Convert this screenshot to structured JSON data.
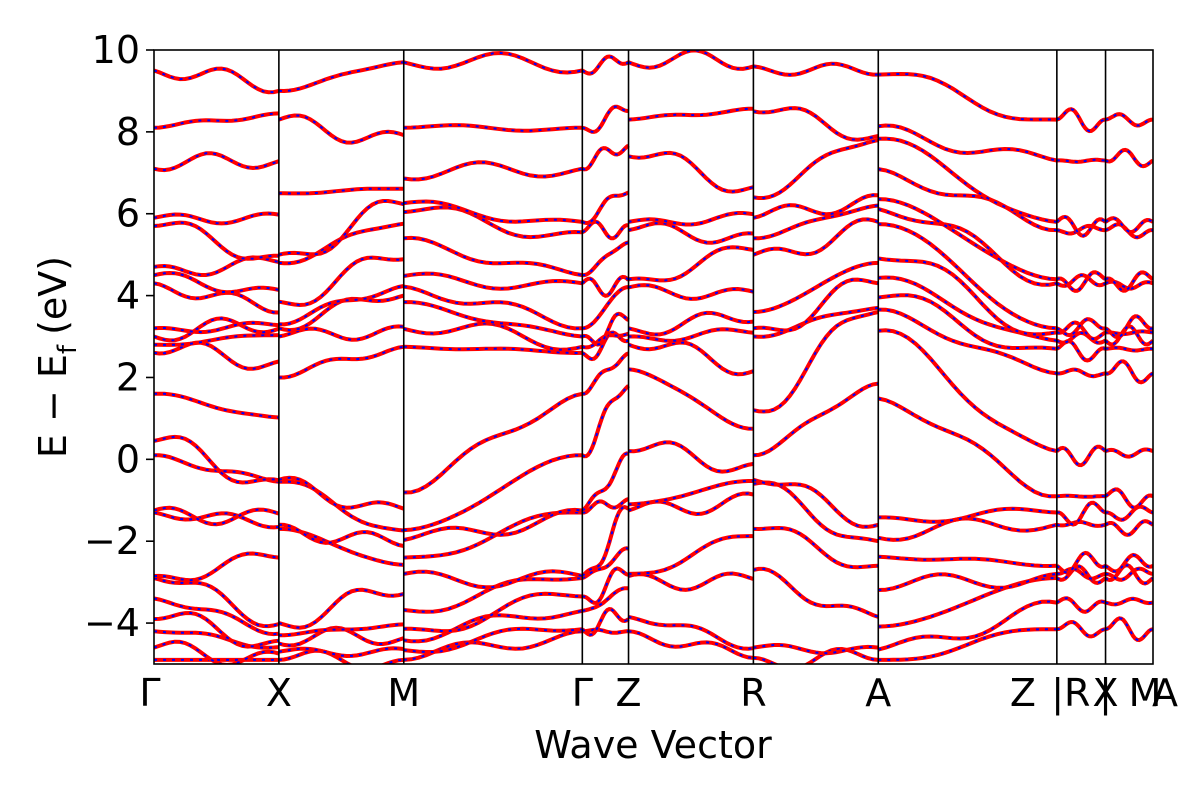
{
  "chart_data": {
    "type": "line",
    "title": "",
    "xlabel": "Wave Vector",
    "ylabel": "E − E_f (eV)",
    "ylabel_main": "E − E",
    "ylabel_sub": "f",
    "ylabel_unit": "(eV)",
    "ylim": [
      -5,
      10
    ],
    "yticks": [
      -4,
      -2,
      0,
      2,
      4,
      6,
      8,
      10
    ],
    "ytick_labels": [
      "−4",
      "−2",
      "0",
      "2",
      "4",
      "6",
      "8",
      "10"
    ],
    "xlim": [
      0,
      8.0
    ],
    "kpoints": [
      {
        "x": 0.0,
        "label": "Γ"
      },
      {
        "x": 1.0,
        "label": "X"
      },
      {
        "x": 2.0,
        "label": "M"
      },
      {
        "x": 3.43,
        "label": "Γ"
      },
      {
        "x": 3.8,
        "label": "Z"
      },
      {
        "x": 4.8,
        "label": "R"
      },
      {
        "x": 5.8,
        "label": "A"
      },
      {
        "x": 7.23,
        "label": "Z"
      },
      {
        "x": 7.23,
        "label": "|R"
      },
      {
        "x": 7.62,
        "label": "X"
      },
      {
        "x": 7.62,
        "label": "|"
      },
      {
        "x": 8.0,
        "label": "M"
      },
      {
        "x": 8.0,
        "label": "A"
      }
    ],
    "vlines": [
      1.0,
      2.0,
      3.43,
      3.8,
      4.8,
      5.8,
      7.23,
      7.62
    ],
    "band_energies_at_kpoints": {
      "Gamma": [
        -4.9,
        -4.6,
        -4.2,
        -3.9,
        -3.4,
        -2.9,
        -2.85,
        -1.3,
        -1.25,
        0.1,
        0.45,
        1.6,
        2.6,
        2.8,
        3.0,
        3.2,
        4.3,
        4.5,
        4.7,
        5.7,
        5.9,
        7.1,
        8.1,
        9.5
      ],
      "X": [
        -4.9,
        -4.7,
        -4.5,
        -4.3,
        -4.0,
        -1.7,
        -1.6,
        -0.55,
        -0.5,
        2.0,
        3.0,
        3.2,
        3.3,
        3.85,
        4.8,
        5.0,
        6.5,
        8.3,
        9.0
      ],
      "M": [
        -4.9,
        -4.6,
        -4.3,
        -3.9,
        -2.8,
        -2.3,
        -1.75,
        -1.7,
        2.75,
        3.3,
        4.2,
        4.25,
        5.4,
        6.2,
        6.3,
        7.7,
        9.7
      ],
      "Gamma2": [
        -4.2,
        -4.15,
        -3.7,
        -3.35,
        -2.9,
        -2.85,
        -1.3,
        -1.25,
        0.1,
        1.6,
        2.6,
        2.75,
        3.0,
        3.2,
        4.3,
        4.5,
        5.55,
        5.8,
        7.1,
        8.1,
        9.5
      ],
      "Z": [
        -4.2,
        -3.85,
        -2.85,
        -2.8,
        -1.25,
        -1.1,
        0.2,
        2.2,
        2.8,
        3.0,
        3.2,
        4.2,
        4.4,
        5.6,
        5.8,
        7.4,
        8.3,
        9.7
      ],
      "R": [
        -4.85,
        -4.6,
        -2.7,
        -1.7,
        -0.6,
        -0.5,
        0.1,
        1.2,
        3.0,
        3.2,
        3.6,
        5.0,
        5.4,
        5.9,
        6.4,
        8.5,
        9.6
      ],
      "A": [
        -4.9,
        -4.6,
        -3.85,
        -2.6,
        -2.0,
        -1.6,
        1.85,
        3.6,
        3.7,
        4.3,
        4.8,
        5.8,
        6.2,
        6.45,
        7.8,
        7.9,
        9.4
      ],
      "Z2": [
        -4.15,
        -3.5,
        -2.9,
        -2.8,
        -2.6,
        -1.6,
        -1.3,
        -0.9,
        0.2,
        2.1,
        2.7,
        2.9,
        3.1,
        3.2,
        4.3,
        4.4,
        5.6,
        5.8,
        7.3,
        8.3
      ]
    },
    "series": [
      {
        "name": "",
        "color": "#ff0000",
        "style": "solid"
      },
      {
        "name": "",
        "color": "#0000ff",
        "style": "dotted"
      }
    ],
    "grid": false,
    "legend": "none"
  }
}
